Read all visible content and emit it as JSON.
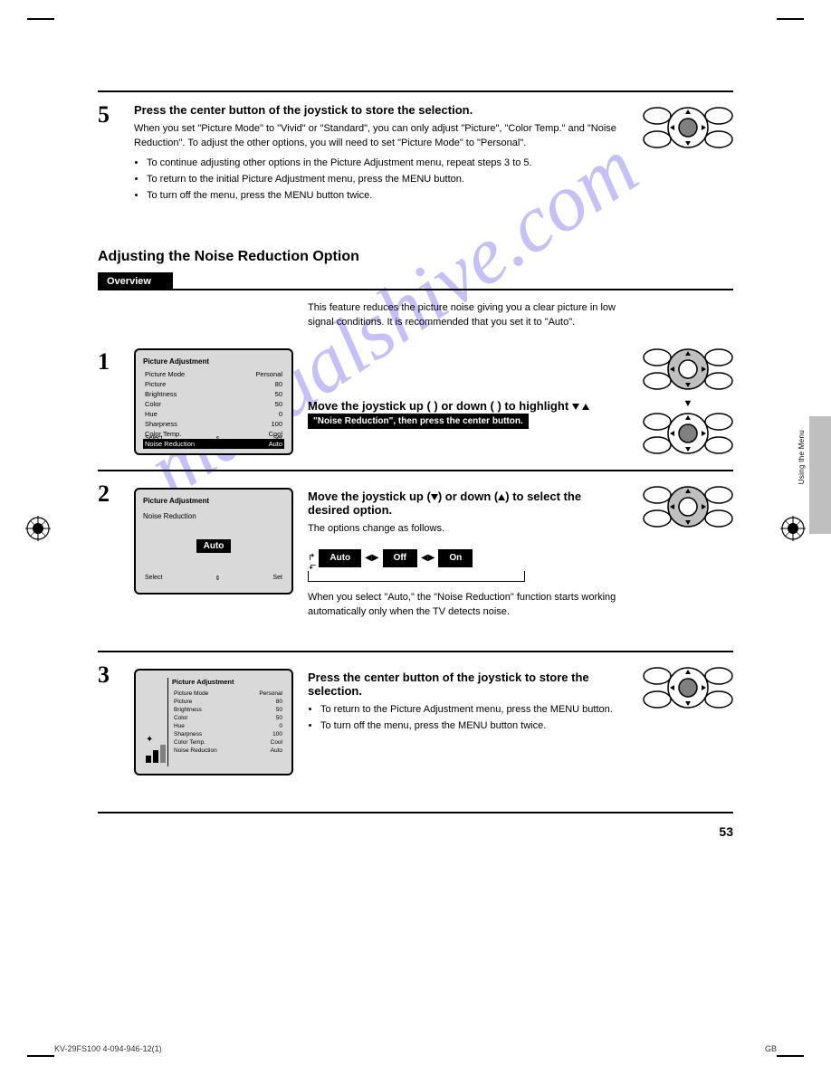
{
  "page": {
    "number": "53",
    "footer_left": "KV-29FS100     4-094-946-12(1)",
    "footer_right": "GB"
  },
  "sidebar": {
    "label": "Using the Menu"
  },
  "watermark": "manualshive.com",
  "section_title": "Adjusting the Noise Reduction Option",
  "tab_label": "Overview",
  "overview_text": "This feature reduces the picture noise giving you a clear picture in low signal conditions. It is recommended that you set it to \"Auto\".",
  "step5": {
    "num": "5",
    "title": "Press the center button of the joystick to store the selection.",
    "text": "When you set \"Picture Mode\" to \"Vivid\" or \"Standard\", you can only adjust \"Picture\", \"Color Temp.\" and \"Noise Reduction\". To adjust the other options, you will need to set \"Picture Mode\" to \"Personal\".",
    "list": [
      "To continue adjusting other options in the Picture Adjustment menu, repeat steps 3 to 5.",
      "To return to the initial Picture Adjustment menu, press the MENU button.",
      "To turn off the menu, press the MENU button twice."
    ]
  },
  "step1": {
    "num": "1",
    "title_pre": "Move the joystick up (  ) or down (  ) to highlight ",
    "title_hl": "\"Noise Reduction\", then press the center button.",
    "screen": {
      "title": "Picture Adjustment",
      "rows": [
        {
          "l": "Picture Mode",
          "r": "Personal",
          "hl": false
        },
        {
          "l": "Picture",
          "r": "80",
          "hl": false
        },
        {
          "l": "Brightness",
          "r": "50",
          "hl": false
        },
        {
          "l": "Color",
          "r": "50",
          "hl": false
        },
        {
          "l": "Hue",
          "r": "0",
          "hl": false
        },
        {
          "l": "Sharpness",
          "r": "100",
          "hl": false
        },
        {
          "l": "Color Temp.",
          "r": "Cool",
          "hl": false
        },
        {
          "l": "Noise Reduction",
          "r": "Auto",
          "hl": true
        }
      ],
      "foot_l": "Select",
      "foot_r": "Set"
    }
  },
  "step2": {
    "num": "2",
    "title_pre": "Move the joystick up (  ) or down (  ) to select the desired option.",
    "text1": "The options change as follows.",
    "text2": "When you select \"Auto,\" the \"Noise Reduction\" function starts working automatically only when the TV detects noise.",
    "cycle": [
      "Auto",
      "Off",
      "On"
    ],
    "screen": {
      "title": "Picture Adjustment",
      "sub": "Noise Reduction",
      "value": "Auto",
      "foot_l": "Select",
      "foot_r": "Set"
    }
  },
  "step3": {
    "num": "3",
    "title": "Press the center button of the joystick to store the selection.",
    "list": [
      "To return to the Picture Adjustment menu, press the MENU button.",
      "To turn off the menu, press the MENU button twice."
    ],
    "screen": {
      "title": "Picture Adjustment",
      "rows": [
        {
          "l": "Picture Mode",
          "r": "Personal"
        },
        {
          "l": "Picture",
          "r": "80"
        },
        {
          "l": "Brightness",
          "r": "50"
        },
        {
          "l": "Color",
          "r": "50"
        },
        {
          "l": "Hue",
          "r": "0"
        },
        {
          "l": "Sharpness",
          "r": "100"
        },
        {
          "l": "Color Temp.",
          "r": "Cool"
        },
        {
          "l": "Noise Reduction",
          "r": "Auto"
        }
      ]
    }
  },
  "remote_svg": {
    "body_fill": "#ffffff",
    "stroke": "#000000",
    "center_fill": "#808080",
    "arrow_fill": "#000000"
  }
}
